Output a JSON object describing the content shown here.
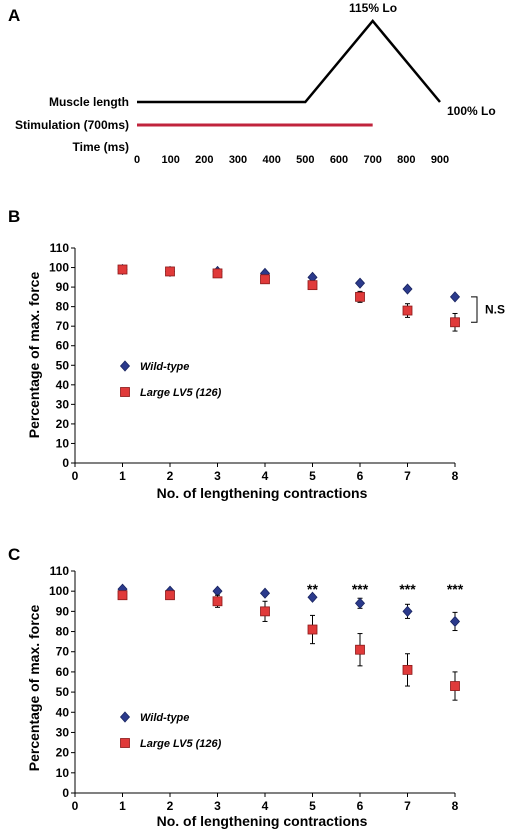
{
  "chart_data": [
    {
      "panel": "A",
      "type": "line",
      "labels": {
        "muscle_length": "Muscle length",
        "stimulation": "Stimulation (700ms)",
        "time": "Time (ms)",
        "peak": "115% Lo",
        "end": "100% Lo"
      },
      "x_ticks": [
        "0",
        "100",
        "200",
        "300",
        "400",
        "500",
        "600",
        "700",
        "800",
        "900"
      ],
      "xlim": [
        0,
        900
      ],
      "muscle_length_trace": {
        "x": [
          0,
          500,
          700,
          900
        ],
        "y": [
          100,
          100,
          115,
          100
        ]
      },
      "stimulation_interval": [
        0,
        700
      ],
      "colors": {
        "stimulation": "#c0243c",
        "trace": "#000000"
      }
    },
    {
      "panel": "B",
      "type": "scatter",
      "xlabel": "No. of lengthening contractions",
      "ylabel": "Percentage of max. force",
      "xlim": [
        0,
        8
      ],
      "ylim": [
        0,
        110
      ],
      "x_ticks": [
        "0",
        "1",
        "2",
        "3",
        "4",
        "5",
        "6",
        "7",
        "8"
      ],
      "y_ticks": [
        "0",
        "10",
        "20",
        "30",
        "40",
        "50",
        "60",
        "70",
        "80",
        "90",
        "100",
        "110"
      ],
      "x": [
        1,
        2,
        3,
        4,
        5,
        6,
        7,
        8
      ],
      "series": [
        {
          "name": "Wild-type",
          "marker": "diamond",
          "color": "#2b3a8c",
          "values": [
            99,
            98,
            98,
            97,
            95,
            92,
            89,
            85
          ],
          "errors": [
            0.8,
            0.8,
            0.8,
            0.8,
            0.8,
            1.0,
            1.2,
            1.0
          ]
        },
        {
          "name": "Large LV5 (126)",
          "marker": "square",
          "color": "#e03a3a",
          "values": [
            99,
            98,
            97,
            94,
            91,
            85,
            78,
            72
          ],
          "errors": [
            1.2,
            1.2,
            1.5,
            1.5,
            1.8,
            2.8,
            3.5,
            4.5
          ]
        }
      ],
      "annotations": [
        {
          "x": 8,
          "text": "N.S"
        }
      ],
      "legend": "left-middle"
    },
    {
      "panel": "C",
      "type": "scatter",
      "xlabel": "No. of lengthening contractions",
      "ylabel": "Percentage of max. force",
      "xlim": [
        0,
        8
      ],
      "ylim": [
        0,
        110
      ],
      "x_ticks": [
        "0",
        "1",
        "2",
        "3",
        "4",
        "5",
        "6",
        "7",
        "8"
      ],
      "y_ticks": [
        "0",
        "10",
        "20",
        "30",
        "40",
        "50",
        "60",
        "70",
        "80",
        "90",
        "100",
        "110"
      ],
      "x": [
        1,
        2,
        3,
        4,
        5,
        6,
        7,
        8
      ],
      "series": [
        {
          "name": "Wild-type",
          "marker": "diamond",
          "color": "#2b3a8c",
          "values": [
            101,
            100,
            100,
            99,
            97,
            94,
            90,
            85
          ],
          "errors": [
            0.8,
            0.8,
            0.8,
            0.8,
            1.2,
            2.5,
            3.5,
            4.5
          ]
        },
        {
          "name": "Large LV5 (126)",
          "marker": "square",
          "color": "#e03a3a",
          "values": [
            98,
            98,
            95,
            90,
            81,
            71,
            61,
            53
          ],
          "errors": [
            1.5,
            2.0,
            3.0,
            5.0,
            7.0,
            8.0,
            8.0,
            7.0
          ]
        }
      ],
      "annotations": [
        {
          "x": 5,
          "text": "**"
        },
        {
          "x": 6,
          "text": "***"
        },
        {
          "x": 7,
          "text": "***"
        },
        {
          "x": 8,
          "text": "***"
        }
      ],
      "legend": "left-middle"
    }
  ]
}
